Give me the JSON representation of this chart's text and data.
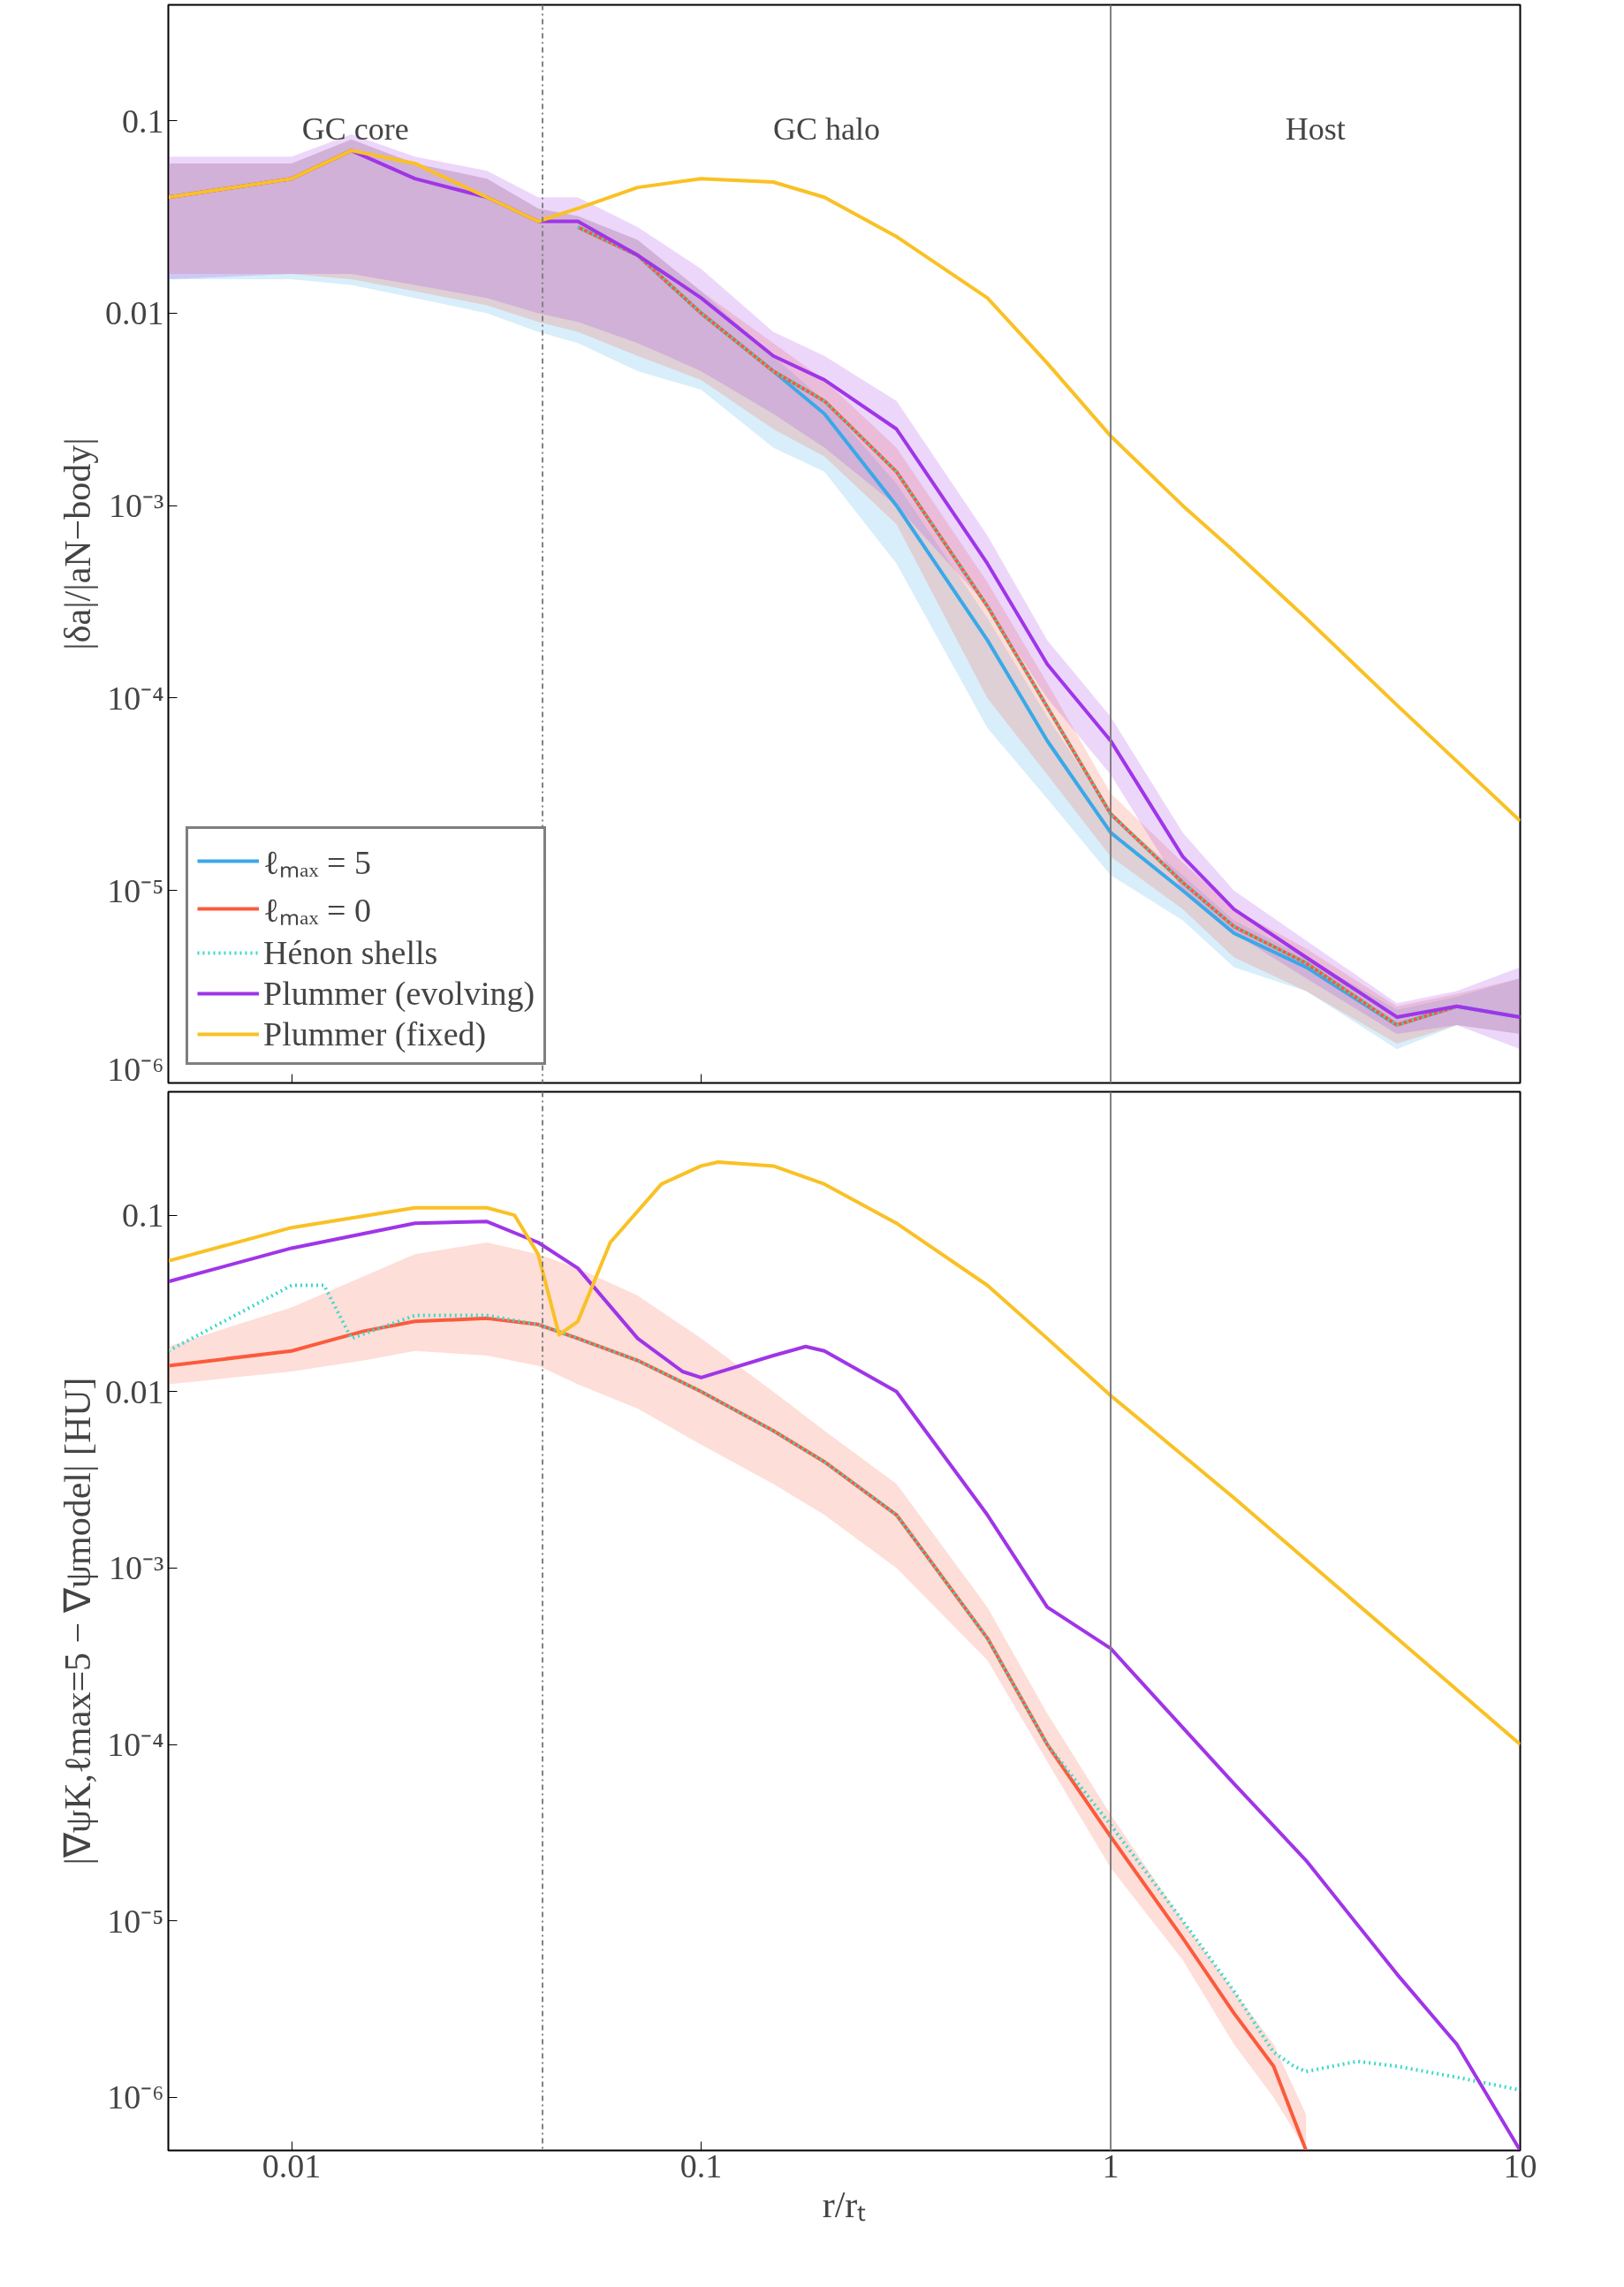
{
  "chart_data": [
    {
      "type": "line",
      "ylabel": "|δa|/|aN−body|",
      "log": "xy",
      "grid": false,
      "legend": "bottom left",
      "tick_labels": "y",
      "xlim": [
        0.005,
        10
      ],
      "ylim": [
        1e-06,
        0.4
      ],
      "yticks": [
        {
          "value": 0.1,
          "label": "0.1"
        },
        {
          "value": 0.01,
          "label": "0.01"
        },
        {
          "value": 0.001,
          "label": "10⁻³"
        },
        {
          "value": 0.0001,
          "label": "10⁻⁴"
        },
        {
          "value": 1e-05,
          "label": "10⁻⁵"
        },
        {
          "value": 1e-06,
          "label": "10⁻⁶"
        }
      ],
      "x": [
        0.005,
        0.01,
        0.014,
        0.02,
        0.03,
        0.04,
        0.05,
        0.07,
        0.1,
        0.15,
        0.2,
        0.3,
        0.5,
        0.7,
        1,
        1.5,
        2,
        3,
        5,
        7,
        10
      ],
      "xticks": [
        {
          "value": 0.01,
          "label": null
        },
        {
          "value": 0.1,
          "label": null
        },
        {
          "value": 1,
          "label": null
        },
        {
          "value": 10,
          "label": null
        }
      ],
      "ref_lines": [
        {
          "axis": "x",
          "value": 0.041,
          "color": "#808080",
          "line_style": "dashdot"
        },
        {
          "axis": "x",
          "value": 1,
          "color": "#808080",
          "line_style": "solid"
        }
      ],
      "annotations": [
        "GC core",
        "GC halo",
        "Host"
      ],
      "series": [
        {
          "name": "ℓₘₐₓ = 5",
          "color": "#3aa8e8",
          "line_style": "solid",
          "values": [
            null,
            null,
            null,
            null,
            null,
            null,
            0.028,
            0.02,
            0.01,
            0.005,
            0.003,
            0.001,
            0.0002,
            6e-05,
            2e-05,
            1e-05,
            6e-06,
            4e-06,
            2e-06,
            2.5e-06,
            2.2e-06
          ],
          "lower": [
            0.015,
            0.015,
            0.014,
            0.012,
            0.01,
            0.008,
            0.007,
            0.005,
            0.004,
            0.002,
            0.0015,
            0.0005,
            7e-05,
            3e-05,
            1.2e-05,
            7e-06,
            4e-06,
            3e-06,
            1.5e-06,
            2e-06,
            1.8e-06
          ],
          "upper": [
            0.06,
            0.06,
            0.08,
            0.06,
            0.05,
            0.035,
            0.032,
            0.024,
            0.013,
            0.006,
            0.0035,
            0.0013,
            0.00026,
            8e-05,
            2.5e-05,
            1.2e-05,
            7e-06,
            4.5e-06,
            2.4e-06,
            2.8e-06,
            3.5e-06
          ]
        },
        {
          "name": "ℓₘₐₓ = 0",
          "color": "#fb5a3c",
          "line_style": "solid",
          "values": [
            null,
            null,
            null,
            null,
            null,
            null,
            0.028,
            0.02,
            0.01,
            0.005,
            0.0035,
            0.0015,
            0.0003,
            9e-05,
            2.5e-05,
            1.1e-05,
            6.5e-06,
            4.2e-06,
            2e-06,
            2.5e-06,
            null
          ],
          "lower": [
            0.016,
            0.016,
            0.015,
            0.013,
            0.011,
            0.009,
            0.008,
            0.006,
            0.0045,
            0.0025,
            0.0018,
            0.0008,
            0.0001,
            4e-05,
            1.5e-05,
            8e-06,
            4.5e-06,
            3e-06,
            1.6e-06,
            2e-06,
            1.8e-06
          ],
          "upper": [
            0.06,
            0.06,
            0.08,
            0.06,
            0.05,
            0.035,
            0.032,
            0.024,
            0.013,
            0.007,
            0.0045,
            0.002,
            0.0004,
            0.00012,
            3.2e-05,
            1.4e-05,
            8e-06,
            5e-06,
            2.5e-06,
            2.9e-06,
            3.5e-06
          ]
        },
        {
          "name": "Hénon shells",
          "color": "#3dd9c9",
          "line_style": "dotted",
          "values": [
            null,
            null,
            null,
            null,
            null,
            null,
            0.028,
            0.02,
            0.01,
            0.005,
            0.0035,
            0.0015,
            0.0003,
            9e-05,
            2.5e-05,
            1.1e-05,
            6.5e-06,
            4.2e-06,
            2e-06,
            2.5e-06,
            2.2e-06
          ]
        },
        {
          "name": "Plummer (evolving)",
          "color": "#a035e8",
          "line_style": "solid",
          "values": [
            0.04,
            0.05,
            0.07,
            0.05,
            0.04,
            0.03,
            0.03,
            0.02,
            0.012,
            0.006,
            0.0045,
            0.0025,
            0.0005,
            0.00015,
            6e-05,
            1.5e-05,
            8e-06,
            4.5e-06,
            2.2e-06,
            2.5e-06,
            2.2e-06
          ],
          "lower": [
            0.015,
            0.016,
            0.016,
            0.014,
            0.012,
            0.01,
            0.009,
            0.007,
            0.005,
            0.003,
            0.002,
            0.001,
            0.0003,
            0.0001,
            4e-05,
            1e-05,
            6e-06,
            3.5e-06,
            1.8e-06,
            2e-06,
            1.5e-06
          ],
          "upper": [
            0.065,
            0.065,
            0.085,
            0.065,
            0.055,
            0.04,
            0.04,
            0.028,
            0.017,
            0.008,
            0.006,
            0.0035,
            0.0007,
            0.0002,
            8e-05,
            2e-05,
            1e-05,
            5.5e-06,
            2.6e-06,
            3e-06,
            4e-06
          ]
        },
        {
          "name": "Plummer (fixed)",
          "color": "#f9c124",
          "line_style": "solid",
          "values": [
            0.04,
            0.05,
            0.07,
            0.06,
            0.04,
            0.03,
            0.035,
            0.045,
            0.05,
            0.048,
            0.04,
            0.025,
            0.012,
            0.0055,
            0.0023,
            0.001,
            0.00058,
            0.00026,
            9.2e-05,
            4.7e-05,
            2.3e-05
          ]
        }
      ]
    },
    {
      "type": "line",
      "xlabel": "r/rₜ",
      "ylabel": "|∇ψK,ℓmax=5 − ∇ψmodel| [HU]",
      "log": "xy",
      "grid": false,
      "xlim": [
        0.005,
        10
      ],
      "xticks": [
        {
          "value": 0.01,
          "label": "0.01"
        },
        {
          "value": 0.1,
          "label": "0.1"
        },
        {
          "value": 1,
          "label": "1"
        },
        {
          "value": 10,
          "label": "10"
        }
      ],
      "ylim": [
        5e-07,
        0.5
      ],
      "yticks": [
        {
          "value": 0.1,
          "label": "0.1"
        },
        {
          "value": 0.01,
          "label": "0.01"
        },
        {
          "value": 0.001,
          "label": "10⁻³"
        },
        {
          "value": 0.0001,
          "label": "10⁻⁴"
        },
        {
          "value": 1e-05,
          "label": "10⁻⁵"
        },
        {
          "value": 1e-06,
          "label": "10⁻⁶"
        }
      ],
      "ref_lines": [
        {
          "axis": "x",
          "value": 0.041,
          "color": "#808080",
          "line_style": "dashdot"
        },
        {
          "axis": "x",
          "value": 1,
          "color": "#808080",
          "line_style": "solid"
        }
      ],
      "series": [
        {
          "color": "#fb5a3c",
          "line_style": "solid",
          "x": [
            0.005,
            0.01,
            0.015,
            0.02,
            0.03,
            0.04,
            0.05,
            0.07,
            0.1,
            0.15,
            0.2,
            0.3,
            0.5,
            0.7,
            1,
            1.5,
            2,
            2.5,
            3
          ],
          "values": [
            0.014,
            0.017,
            0.022,
            0.025,
            0.026,
            0.024,
            0.02,
            0.015,
            0.01,
            0.006,
            0.004,
            0.002,
            0.0004,
            0.0001,
            3e-05,
            8e-06,
            3e-06,
            1.5e-06,
            5e-07
          ],
          "lower": [
            0.011,
            0.013,
            0.015,
            0.017,
            0.016,
            0.014,
            0.011,
            0.008,
            0.005,
            0.003,
            0.002,
            0.001,
            0.0003,
            8e-05,
            2e-05,
            6e-06,
            2e-06,
            1e-06,
            5e-07
          ],
          "upper": [
            0.018,
            0.03,
            0.045,
            0.06,
            0.07,
            0.06,
            0.05,
            0.035,
            0.02,
            0.01,
            0.006,
            0.003,
            0.0006,
            0.00015,
            4e-05,
            1e-05,
            4e-06,
            2e-06,
            8e-07
          ]
        },
        {
          "color": "#3dd9c9",
          "line_style": "dotted",
          "x": [
            0.005,
            0.01,
            0.012,
            0.014,
            0.02,
            0.03,
            0.04,
            0.05,
            0.07,
            0.1,
            0.15,
            0.2,
            0.3,
            0.5,
            0.7,
            1,
            1.5,
            2,
            2.5,
            2.8,
            3,
            4,
            5,
            7,
            10
          ],
          "values": [
            0.017,
            0.04,
            0.04,
            0.02,
            0.027,
            0.027,
            0.024,
            0.02,
            0.015,
            0.01,
            0.006,
            0.004,
            0.002,
            0.0004,
            0.0001,
            3.5e-05,
            1e-05,
            4e-06,
            1.8e-06,
            1.5e-06,
            1.4e-06,
            1.6e-06,
            1.5e-06,
            1.3e-06,
            1.1e-06
          ]
        },
        {
          "color": "#a035e8",
          "line_style": "solid",
          "x": [
            0.005,
            0.01,
            0.02,
            0.03,
            0.04,
            0.05,
            0.07,
            0.09,
            0.1,
            0.15,
            0.18,
            0.2,
            0.3,
            0.5,
            0.7,
            1,
            2,
            3,
            5,
            7,
            10
          ],
          "values": [
            0.042,
            0.065,
            0.09,
            0.092,
            0.07,
            0.05,
            0.02,
            0.013,
            0.012,
            0.016,
            0.018,
            0.017,
            0.01,
            0.002,
            0.0006,
            0.00035,
            6e-05,
            2.2e-05,
            5e-06,
            2e-06,
            5e-07
          ]
        },
        {
          "color": "#f9c124",
          "line_style": "solid",
          "x": [
            0.005,
            0.01,
            0.02,
            0.03,
            0.035,
            0.04,
            0.045,
            0.05,
            0.06,
            0.08,
            0.1,
            0.11,
            0.15,
            0.2,
            0.3,
            0.5,
            0.7,
            1,
            2,
            5,
            10
          ],
          "values": [
            0.055,
            0.085,
            0.11,
            0.11,
            0.1,
            0.06,
            0.021,
            0.025,
            0.07,
            0.15,
            0.19,
            0.2,
            0.19,
            0.15,
            0.09,
            0.04,
            0.02,
            0.0095,
            0.0025,
            0.0004,
            0.0001
          ]
        }
      ]
    }
  ]
}
